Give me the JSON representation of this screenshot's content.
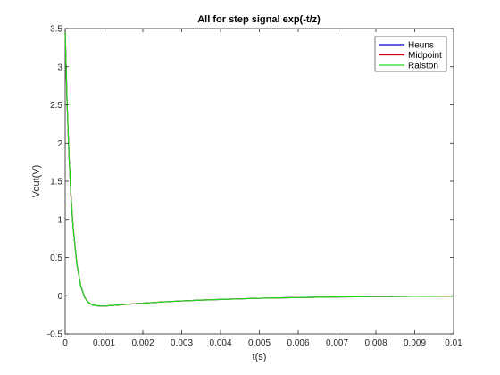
{
  "chart_data": {
    "type": "line",
    "title": "All for step signal exp(-t/z)",
    "xlabel": "t(s)",
    "ylabel": "Vout(V)",
    "xlim": [
      0,
      0.01
    ],
    "ylim": [
      -0.5,
      3.5
    ],
    "xticks": [
      0,
      0.001,
      0.002,
      0.003,
      0.004,
      0.005,
      0.006,
      0.007,
      0.008,
      0.009,
      0.01
    ],
    "xtick_labels": [
      "0",
      "0.001",
      "0.002",
      "0.003",
      "0.004",
      "0.005",
      "0.006",
      "0.007",
      "0.008",
      "0.009",
      "0.01"
    ],
    "yticks": [
      -0.5,
      0,
      0.5,
      1,
      1.5,
      2,
      2.5,
      3,
      3.5
    ],
    "ytick_labels": [
      "-0.5",
      "0",
      "0.5",
      "1",
      "1.5",
      "2",
      "2.5",
      "3",
      "3.5"
    ],
    "grid": false,
    "legend_position": "top-right",
    "x": [
      0,
      5e-05,
      0.0001,
      0.00015,
      0.0002,
      0.0003,
      0.0004,
      0.0005,
      0.0006,
      0.0007,
      0.0008,
      0.0009,
      0.001,
      0.0011,
      0.0012,
      0.0014,
      0.0016,
      0.0018,
      0.002,
      0.0025,
      0.003,
      0.0035,
      0.004,
      0.0045,
      0.005,
      0.0055,
      0.006,
      0.0065,
      0.007,
      0.0075,
      0.008,
      0.0085,
      0.009,
      0.0095,
      0.01
    ],
    "series": [
      {
        "name": "Heuns",
        "color": "#0000cc",
        "values": [
          3.45,
          2.52,
          1.82,
          1.3,
          0.92,
          0.42,
          0.13,
          -0.02,
          -0.09,
          -0.12,
          -0.13,
          -0.135,
          -0.135,
          -0.132,
          -0.128,
          -0.12,
          -0.112,
          -0.104,
          -0.097,
          -0.081,
          -0.068,
          -0.057,
          -0.048,
          -0.04,
          -0.033,
          -0.028,
          -0.023,
          -0.019,
          -0.016,
          -0.013,
          -0.011,
          -0.009,
          -0.008,
          -0.006,
          -0.005
        ]
      },
      {
        "name": "Midpoint",
        "color": "#cc0000",
        "values": [
          3.45,
          2.52,
          1.82,
          1.3,
          0.92,
          0.42,
          0.13,
          -0.02,
          -0.09,
          -0.12,
          -0.13,
          -0.135,
          -0.135,
          -0.132,
          -0.128,
          -0.12,
          -0.112,
          -0.104,
          -0.097,
          -0.081,
          -0.068,
          -0.057,
          -0.048,
          -0.04,
          -0.033,
          -0.028,
          -0.023,
          -0.019,
          -0.016,
          -0.013,
          -0.011,
          -0.009,
          -0.008,
          -0.006,
          -0.005
        ]
      },
      {
        "name": "Ralston",
        "color": "#22dd22",
        "values": [
          3.45,
          2.52,
          1.82,
          1.3,
          0.92,
          0.42,
          0.13,
          -0.02,
          -0.09,
          -0.12,
          -0.13,
          -0.135,
          -0.135,
          -0.132,
          -0.128,
          -0.12,
          -0.112,
          -0.104,
          -0.097,
          -0.081,
          -0.068,
          -0.057,
          -0.048,
          -0.04,
          -0.033,
          -0.028,
          -0.023,
          -0.019,
          -0.016,
          -0.013,
          -0.011,
          -0.009,
          -0.008,
          -0.006,
          -0.005
        ]
      }
    ]
  }
}
